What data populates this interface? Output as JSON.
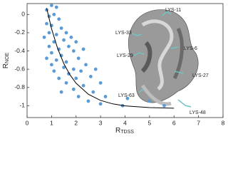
{
  "chart_data": {
    "type": "scatter",
    "x_label": {
      "text": "R",
      "subscript": "TDSS"
    },
    "y_label": {
      "text": "R",
      "subscript": "NOE"
    },
    "xlim": [
      0,
      8
    ],
    "xticks": [
      0,
      1,
      2,
      3,
      4,
      5,
      6,
      7,
      8
    ],
    "ylim": [
      -1.13,
      0.12
    ],
    "yticks": [
      0,
      -0.2,
      -0.4,
      -0.6,
      -0.8,
      -1
    ],
    "series": [
      {
        "color": "#5b9bd5",
        "mode": "markers",
        "x": [
          0.8,
          1.0,
          1.2,
          0.9,
          1.1,
          1.3,
          0.8,
          1.0,
          1.4,
          0.9,
          1.2,
          1.6,
          0.7,
          1.1,
          1.5,
          1.8,
          0.9,
          1.3,
          1.7,
          2.0,
          1.0,
          1.4,
          1.9,
          2.3,
          0.8,
          1.2,
          1.6,
          2.1,
          1.0,
          1.5,
          1.9,
          2.4,
          1.1,
          1.7,
          2.2,
          2.8,
          1.3,
          2.0,
          2.6,
          1.6,
          2.3,
          3.0,
          1.9,
          2.7,
          1.4,
          2.1,
          3.2,
          2.5,
          4.1,
          5.0,
          3.0,
          5.6,
          3.9
        ],
        "y": [
          0.05,
          0.1,
          0.08,
          -0.02,
          0,
          -0.05,
          -0.1,
          -0.12,
          -0.15,
          -0.2,
          -0.22,
          -0.2,
          -0.25,
          -0.3,
          -0.28,
          -0.25,
          -0.35,
          -0.38,
          -0.35,
          -0.3,
          -0.42,
          -0.45,
          -0.4,
          -0.38,
          -0.48,
          -0.5,
          -0.52,
          -0.48,
          -0.55,
          -0.58,
          -0.6,
          -0.55,
          -0.62,
          -0.65,
          -0.62,
          -0.6,
          -0.7,
          -0.7,
          -0.68,
          -0.75,
          -0.78,
          -0.75,
          -0.82,
          -0.85,
          -0.85,
          -0.9,
          -0.9,
          -0.95,
          -0.92,
          -0.95,
          -0.98,
          -1.0,
          -1.0
        ]
      },
      {
        "color": "#000000",
        "mode": "line",
        "x": [
          0.8,
          1,
          1.25,
          1.5,
          1.75,
          2,
          2.5,
          3,
          3.5,
          4,
          5,
          6
        ],
        "y": [
          0.07,
          -0.157,
          -0.374,
          -0.538,
          -0.661,
          -0.753,
          -0.874,
          -0.942,
          -0.98,
          -1.002,
          -1.021,
          -1.027
        ]
      }
    ],
    "annotations": [
      "LYS-11",
      "LYS-33",
      "LYS-6",
      "LYS-29",
      "LYS-27",
      "LYS-63",
      "LYS-48"
    ]
  }
}
